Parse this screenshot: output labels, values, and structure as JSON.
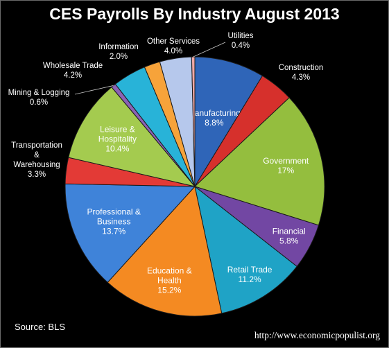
{
  "chart_data": {
    "type": "pie",
    "title": "CES Payrolls By Industry August 2013",
    "slices": [
      {
        "name": "Manufacturing",
        "lines": [
          "Manufacturing"
        ],
        "label": "8.8%",
        "value": 8.8,
        "color": "#2F65B8",
        "inside": true
      },
      {
        "name": "Construction",
        "lines": [
          "Construction"
        ],
        "label": "4.3%",
        "value": 4.3,
        "color": "#D6302C",
        "inside": false
      },
      {
        "name": "Government",
        "lines": [
          "Government"
        ],
        "label": "17%",
        "value": 17.0,
        "color": "#94BE3E",
        "inside": true
      },
      {
        "name": "Financial",
        "lines": [
          "Financial"
        ],
        "label": "5.8%",
        "value": 5.8,
        "color": "#7247A3",
        "inside": true
      },
      {
        "name": "Retail Trade",
        "lines": [
          "Retail Trade"
        ],
        "label": "11.2%",
        "value": 11.2,
        "color": "#1FA3C6",
        "inside": true
      },
      {
        "name": "Education & Health",
        "lines": [
          "Education &",
          "Health"
        ],
        "label": "15.2%",
        "value": 15.2,
        "color": "#F48A22",
        "inside": true
      },
      {
        "name": "Professional & Business",
        "lines": [
          "Professional &",
          "Business"
        ],
        "label": "13.7%",
        "value": 13.7,
        "color": "#3F83D9",
        "inside": true
      },
      {
        "name": "Transportation & Warehousing",
        "lines": [
          "Transportation",
          "&",
          "Warehousing"
        ],
        "label": "3.3%",
        "value": 3.3,
        "color": "#E33A36",
        "inside": false
      },
      {
        "name": "Leisure & Hospitality",
        "lines": [
          "Leisure &",
          "Hospitality"
        ],
        "label": "10.4%",
        "value": 10.4,
        "color": "#A4CB4F",
        "inside": true
      },
      {
        "name": "Mining & Logging",
        "lines": [
          "Mining & Logging"
        ],
        "label": "0.6%",
        "value": 0.6,
        "color": "#8A62B5",
        "inside": false
      },
      {
        "name": "Wholesale Trade",
        "lines": [
          "Wholesale Trade"
        ],
        "label": "4.2%",
        "value": 4.2,
        "color": "#28B3D8",
        "inside": false
      },
      {
        "name": "Information",
        "lines": [
          "Information"
        ],
        "label": "2.0%",
        "value": 2.0,
        "color": "#F7A33A",
        "inside": false
      },
      {
        "name": "Other Services",
        "lines": [
          "Other Services"
        ],
        "label": "4.0%",
        "value": 4.0,
        "color": "#B6C8EC",
        "inside": false
      },
      {
        "name": "Utilities",
        "lines": [
          "Utilities"
        ],
        "label": "0.4%",
        "value": 0.4,
        "color": "#EFA8A5",
        "inside": false
      }
    ]
  },
  "footer": {
    "source": "Source:  BLS",
    "url": "http://www.economicpopulist.org"
  }
}
